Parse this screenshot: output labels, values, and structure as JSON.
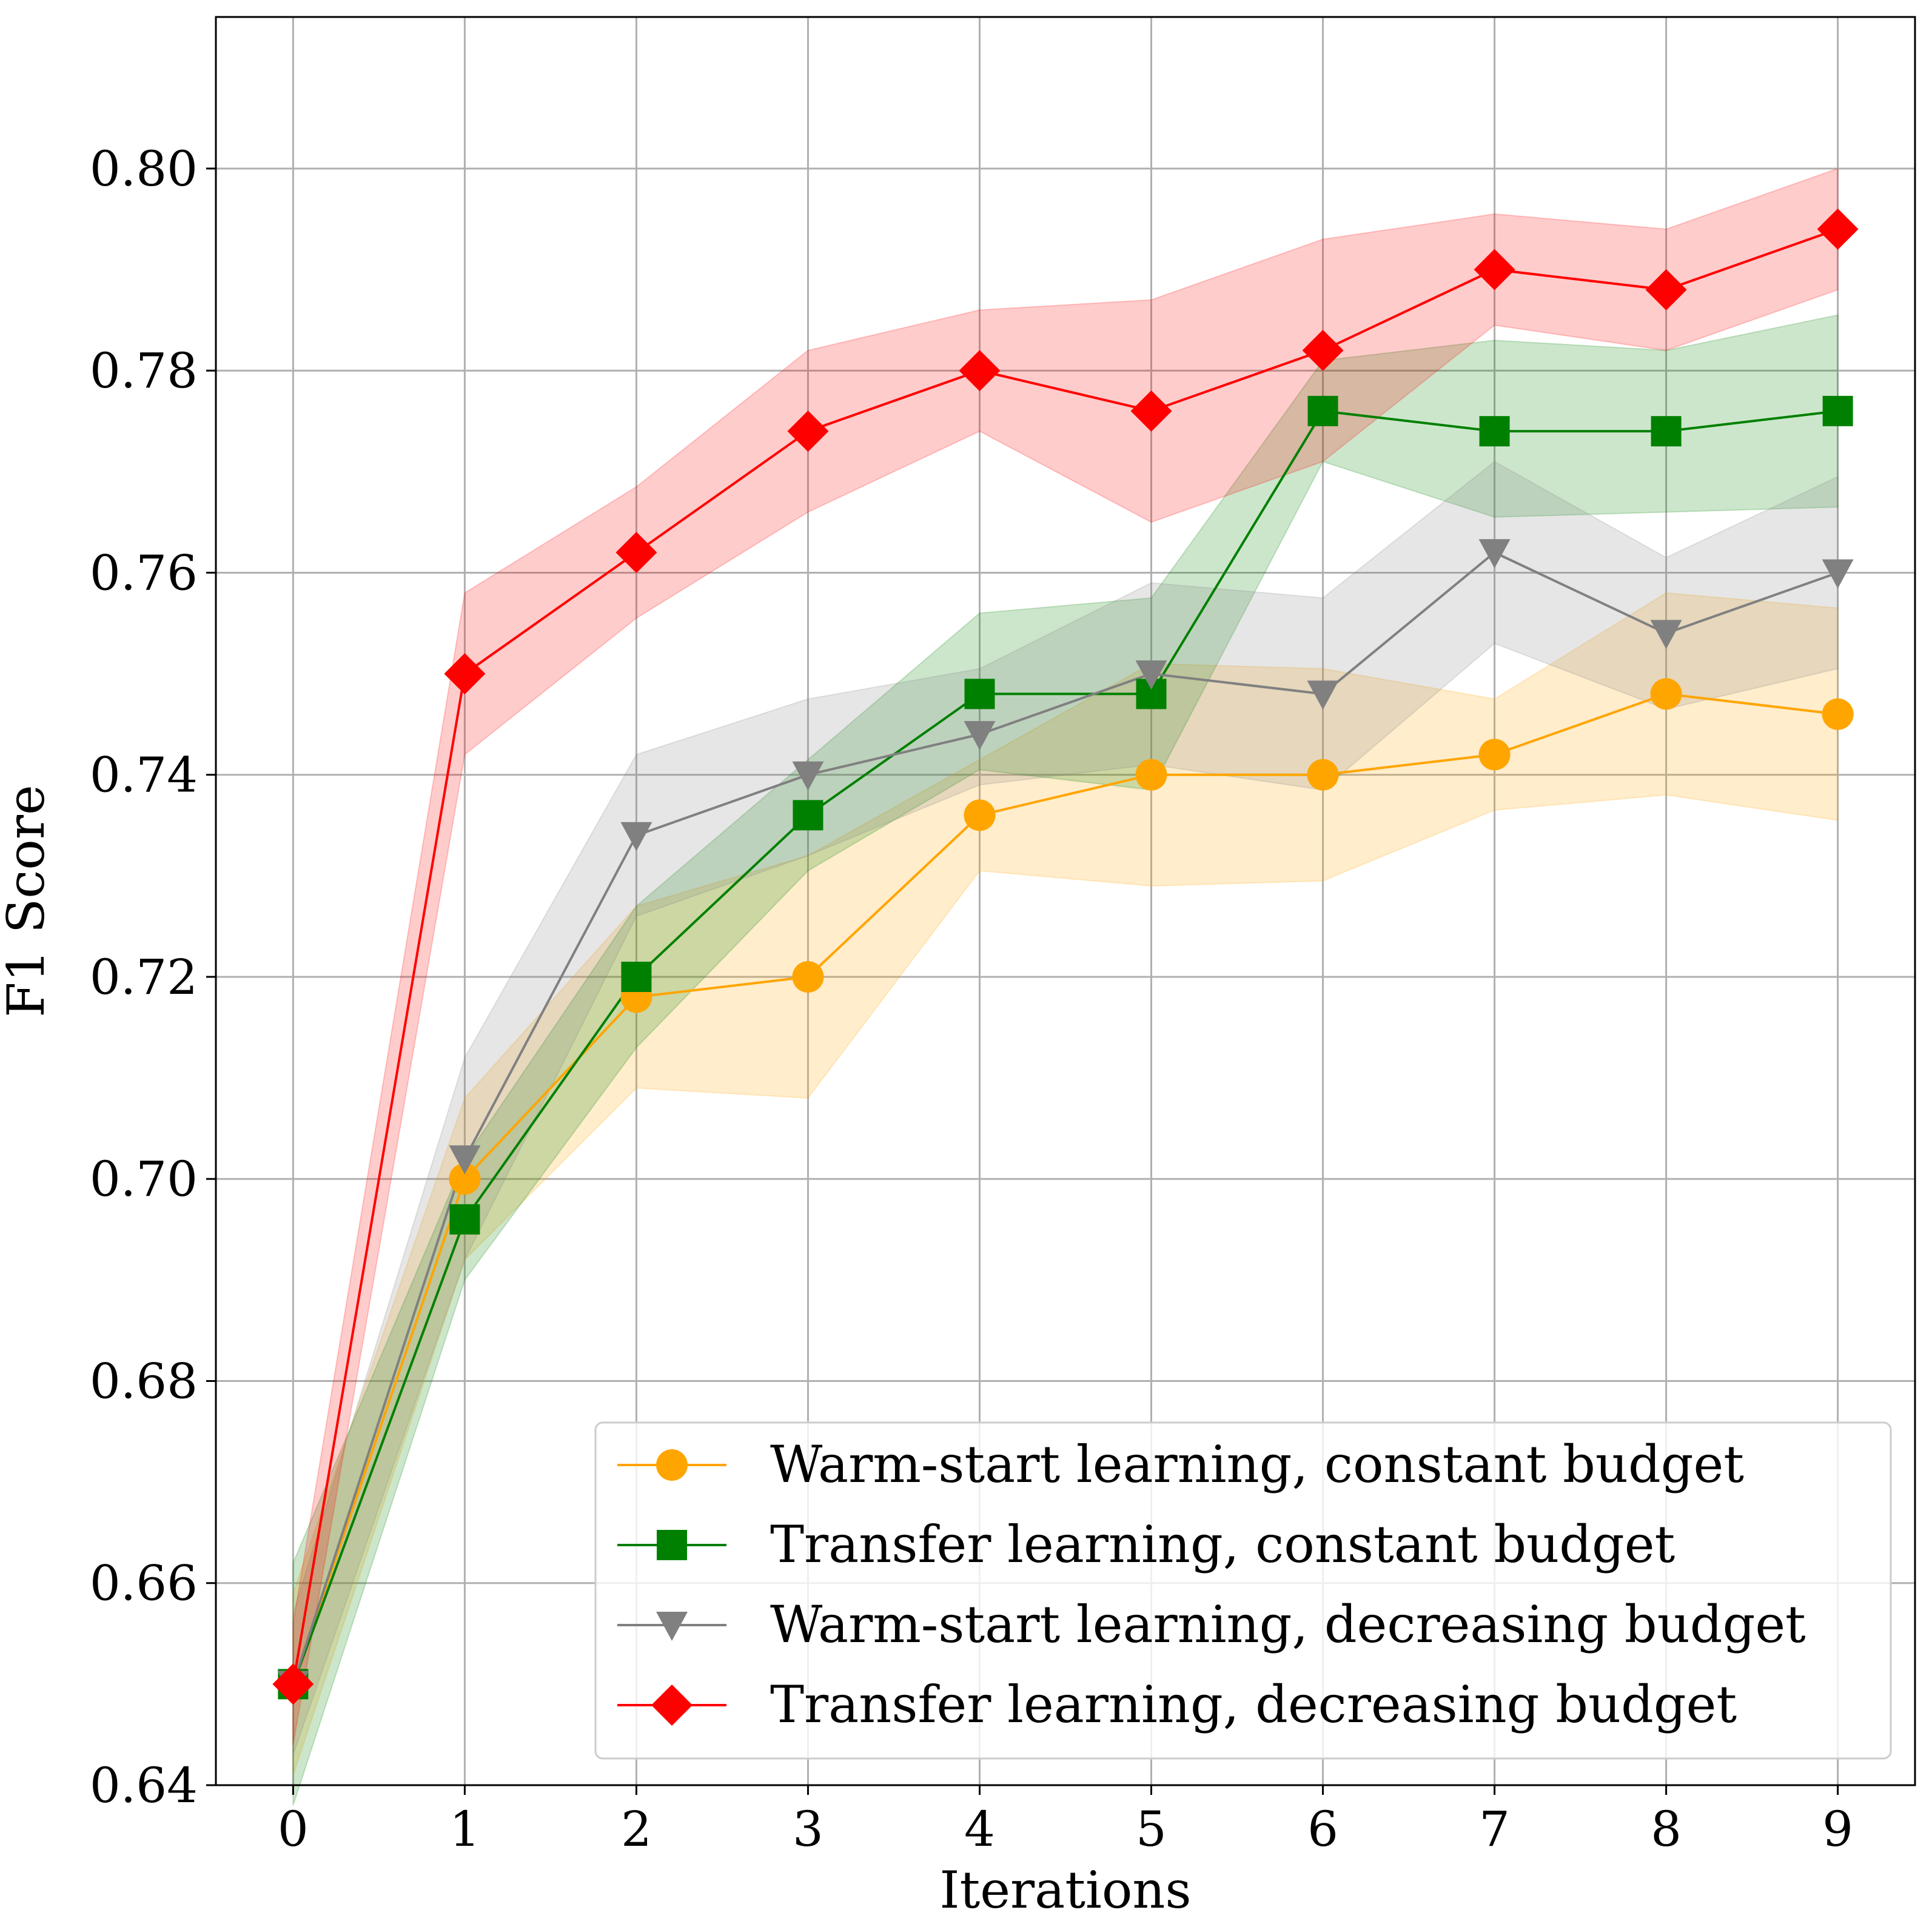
{
  "chart_data": {
    "type": "line",
    "title": "",
    "xlabel": "Iterations",
    "ylabel": "F1 Score",
    "x": [
      0,
      1,
      2,
      3,
      4,
      5,
      6,
      7,
      8,
      9
    ],
    "x_ticks": [
      "0",
      "1",
      "2",
      "3",
      "4",
      "5",
      "6",
      "7",
      "8",
      "9"
    ],
    "xlim": [
      -0.45,
      9.45
    ],
    "ylim": [
      0.64,
      0.815
    ],
    "y_ticks": [
      0.64,
      0.66,
      0.68,
      0.7,
      0.72,
      0.74,
      0.76,
      0.78,
      0.8
    ],
    "y_tick_labels": [
      "0.64",
      "0.66",
      "0.68",
      "0.70",
      "0.72",
      "0.74",
      "0.76",
      "0.78",
      "0.80"
    ],
    "grid": true,
    "legend_position": "lower-right",
    "series": [
      {
        "name": "Warm-start learning, constant budget",
        "color": "#ffa500",
        "marker": "circle",
        "values": [
          0.65,
          0.7,
          0.718,
          0.72,
          0.736,
          0.74,
          0.74,
          0.742,
          0.748,
          0.746
        ],
        "lower": [
          0.641,
          0.692,
          0.709,
          0.708,
          0.7305,
          0.729,
          0.7295,
          0.7365,
          0.738,
          0.7355
        ],
        "upper": [
          0.659,
          0.708,
          0.727,
          0.732,
          0.7415,
          0.751,
          0.7505,
          0.7475,
          0.758,
          0.7565
        ]
      },
      {
        "name": "Transfer learning, constant budget",
        "color": "#008000",
        "marker": "square",
        "values": [
          0.65,
          0.696,
          0.72,
          0.736,
          0.748,
          0.748,
          0.776,
          0.774,
          0.774,
          0.776
        ],
        "lower": [
          0.638,
          0.69,
          0.713,
          0.7305,
          0.7405,
          0.7385,
          0.771,
          0.7655,
          0.766,
          0.7665
        ],
        "upper": [
          0.662,
          0.702,
          0.727,
          0.7415,
          0.756,
          0.7575,
          0.781,
          0.783,
          0.782,
          0.7855
        ]
      },
      {
        "name": "Warm-start learning, decreasing budget",
        "color": "#808080",
        "marker": "triangle-down",
        "values": [
          0.65,
          0.702,
          0.734,
          0.74,
          0.744,
          0.75,
          0.748,
          0.762,
          0.754,
          0.76
        ],
        "lower": [
          0.643,
          0.692,
          0.726,
          0.732,
          0.739,
          0.741,
          0.7385,
          0.753,
          0.7465,
          0.7505
        ],
        "upper": [
          0.657,
          0.712,
          0.742,
          0.7475,
          0.7505,
          0.759,
          0.7575,
          0.771,
          0.7615,
          0.7695
        ]
      },
      {
        "name": "Transfer learning, decreasing budget",
        "color": "#ff0000",
        "marker": "diamond",
        "values": [
          0.65,
          0.75,
          0.762,
          0.774,
          0.78,
          0.776,
          0.782,
          0.79,
          0.788,
          0.794
        ],
        "lower": [
          0.644,
          0.742,
          0.7555,
          0.766,
          0.774,
          0.765,
          0.771,
          0.7845,
          0.782,
          0.788
        ],
        "upper": [
          0.656,
          0.758,
          0.7685,
          0.782,
          0.786,
          0.787,
          0.793,
          0.7955,
          0.794,
          0.8
        ]
      }
    ]
  }
}
